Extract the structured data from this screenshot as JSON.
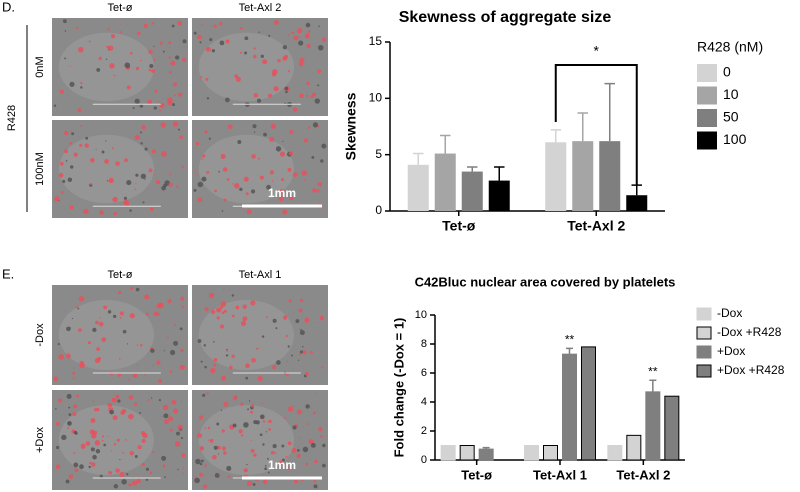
{
  "figure": {
    "panel_d": {
      "label": "D.",
      "columns": [
        "Tet-ø",
        "Tet-Axl 2"
      ],
      "rows": [
        "0nM",
        "100nM"
      ],
      "side_label": "R428",
      "scale_bar": "1mm"
    },
    "panel_e": {
      "label": "E.",
      "columns": [
        "Tet-ø",
        "Tet-Axl 1"
      ],
      "rows": [
        "-Dox",
        "+Dox"
      ],
      "scale_bar": "1mm"
    }
  },
  "chart_data": [
    {
      "type": "bar",
      "title": "Skewness of aggregate size",
      "y_label": "Skewness",
      "categories": [
        "Tet-ø",
        "Tet-Axl 2"
      ],
      "legend_title": "R428 (nM)",
      "series": [
        {
          "name": "0",
          "color": "#d3d3d3",
          "values": [
            4.1,
            6.1
          ],
          "errors": [
            1.0,
            1.1
          ]
        },
        {
          "name": "10",
          "color": "#a5a5a5",
          "values": [
            5.1,
            6.2
          ],
          "errors": [
            1.6,
            2.5
          ]
        },
        {
          "name": "50",
          "color": "#7f7f7f",
          "values": [
            3.5,
            6.2
          ],
          "errors": [
            0.4,
            5.1
          ]
        },
        {
          "name": "100",
          "color": "#000000",
          "values": [
            2.7,
            1.4
          ],
          "errors": [
            1.2,
            0.9
          ]
        }
      ],
      "ylim": [
        0,
        15
      ],
      "yticks": [
        0,
        5,
        10,
        15
      ],
      "annotations": [
        "*"
      ]
    },
    {
      "type": "bar",
      "title": "C42Bluc nuclear area covered by platelets",
      "y_label": "Fold change (-Dox = 1)",
      "categories": [
        "Tet-ø",
        "Tet-Axl 1",
        "Tet-Axl 2"
      ],
      "series": [
        {
          "name": "-Dox",
          "color": "#d3d3d3",
          "edgecolor": "#d3d3d3",
          "values": [
            1.0,
            1.0,
            1.0
          ],
          "errors": [
            null,
            null,
            null
          ]
        },
        {
          "name": "-Dox +R428",
          "color": "#d3d3d3",
          "edgecolor": "#000000",
          "values": [
            1.0,
            1.0,
            1.7
          ],
          "errors": [
            null,
            null,
            null
          ]
        },
        {
          "name": "+Dox",
          "color": "#7f7f7f",
          "edgecolor": "#7f7f7f",
          "values": [
            0.75,
            7.3,
            4.7
          ],
          "errors": [
            0.1,
            0.4,
            0.8
          ]
        },
        {
          "name": "+Dox +R428",
          "color": "#7f7f7f",
          "edgecolor": "#000000",
          "values": [
            null,
            7.8,
            4.4
          ],
          "errors": [
            null,
            null,
            null
          ]
        }
      ],
      "ylim": [
        0,
        10
      ],
      "yticks": [
        0,
        2,
        4,
        6,
        8,
        10
      ],
      "annotations": [
        "**",
        "**"
      ]
    }
  ]
}
